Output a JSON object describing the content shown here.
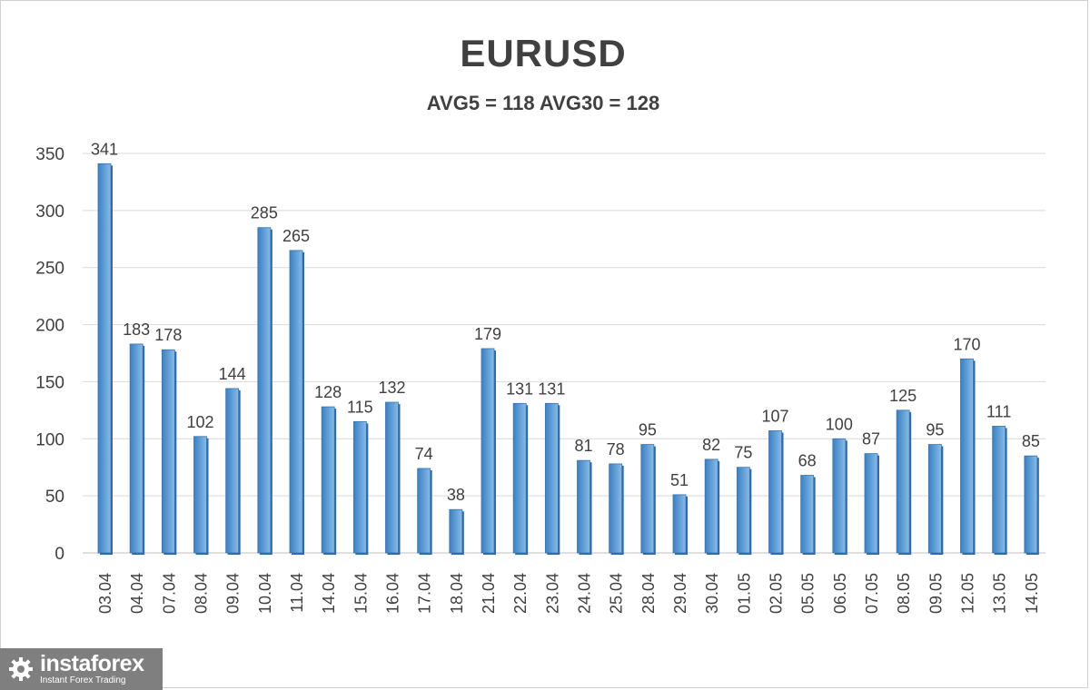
{
  "chart_data": {
    "type": "bar",
    "title": "EURUSD",
    "subtitle": "AVG5 = 118 AVG30 = 128",
    "xlabel": "",
    "ylabel": "",
    "ylim": [
      0,
      350
    ],
    "yticks": [
      0,
      50,
      100,
      150,
      200,
      250,
      300,
      350
    ],
    "grid": true,
    "legend": "none",
    "bar_color": "#5b9bd5",
    "categories": [
      "03.04",
      "04.04",
      "07.04",
      "08.04",
      "09.04",
      "10.04",
      "11.04",
      "14.04",
      "15.04",
      "16.04",
      "17.04",
      "18.04",
      "21.04",
      "22.04",
      "23.04",
      "24.04",
      "25.04",
      "28.04",
      "29.04",
      "30.04",
      "01.05",
      "02.05",
      "05.05",
      "06.05",
      "07.05",
      "08.05",
      "09.05",
      "12.05",
      "13.05",
      "14.05"
    ],
    "values": [
      341,
      183,
      178,
      102,
      144,
      285,
      265,
      128,
      115,
      132,
      74,
      38,
      179,
      131,
      131,
      81,
      78,
      95,
      51,
      82,
      75,
      107,
      68,
      100,
      87,
      125,
      95,
      170,
      111,
      85
    ]
  },
  "logo": {
    "name": "instaforex",
    "tagline": "Instant Forex Trading"
  }
}
